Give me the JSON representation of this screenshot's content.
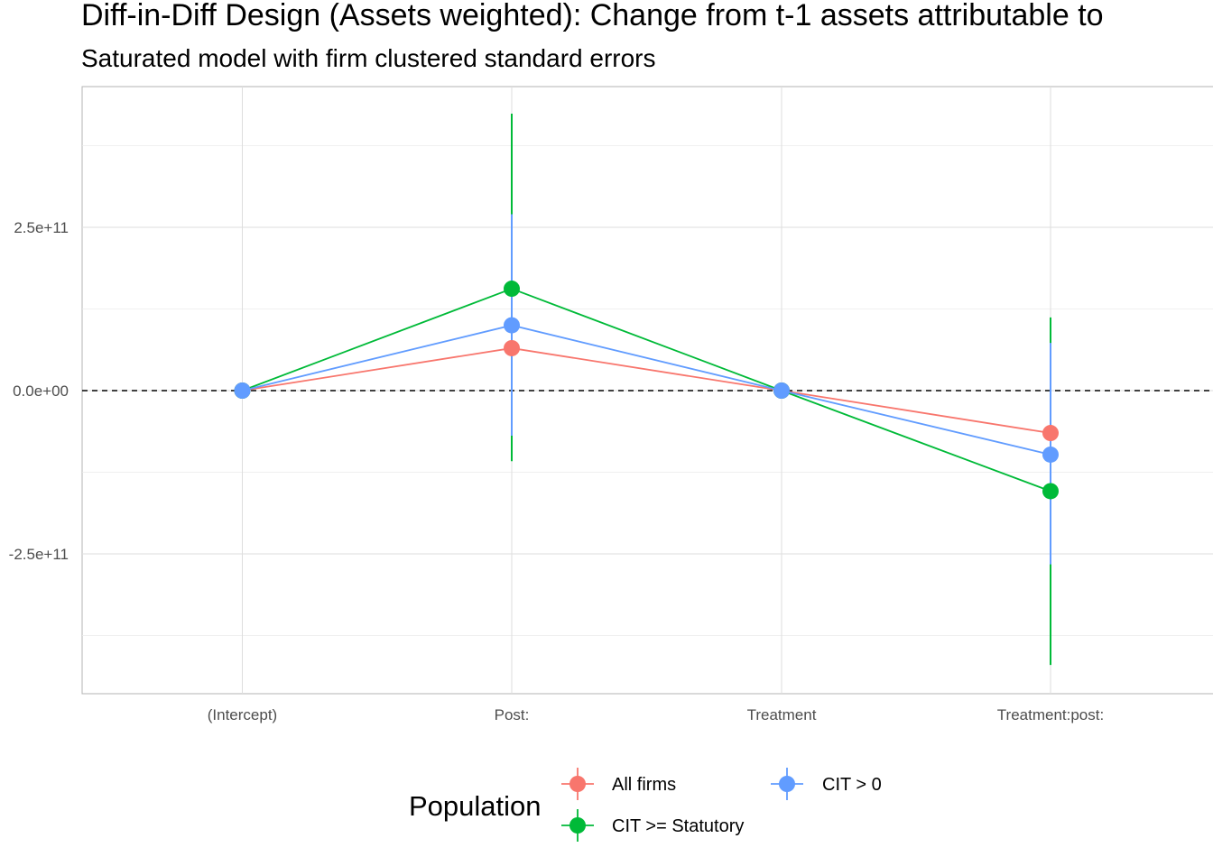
{
  "chart_data": {
    "type": "line",
    "title": "Diff-in-Diff Design (Assets weighted): Change from t-1 assets attributable to",
    "subtitle": "Saturated model with firm clustered standard errors",
    "categories": [
      "(Intercept)",
      "Post:",
      "Treatment",
      "Treatment:post:"
    ],
    "ylim": [
      -460000000000.0,
      465000000000.0
    ],
    "yticks": [
      {
        "value": -250000000000.0,
        "label": "-2.5e+11"
      },
      {
        "value": 0,
        "label": "0.0e+00"
      },
      {
        "value": 250000000000.0,
        "label": "2.5e+11"
      }
    ],
    "grid": true,
    "reference_line": {
      "value": 0,
      "style": "dashed"
    },
    "legend": {
      "title": "Population",
      "position": "bottom"
    },
    "series": [
      {
        "name": "All firms",
        "color": "#F8766D",
        "values": [
          0,
          65000000000.0,
          0,
          -65000000000.0
        ],
        "lower": [
          null,
          null,
          null,
          null
        ],
        "upper": [
          null,
          null,
          null,
          null
        ]
      },
      {
        "name": "CIT >= Statutory",
        "color": "#00BA38",
        "values": [
          0,
          156000000000.0,
          0,
          -154000000000.0
        ],
        "lower": [
          null,
          -108000000000.0,
          null,
          -420000000000.0
        ],
        "upper": [
          null,
          424000000000.0,
          null,
          112000000000.0
        ]
      },
      {
        "name": "CIT > 0",
        "color": "#619CFF",
        "values": [
          0,
          100000000000.0,
          0,
          -98000000000.0
        ],
        "lower": [
          null,
          -69000000000.0,
          null,
          -266000000000.0
        ],
        "upper": [
          null,
          270000000000.0,
          null,
          73000000000.0
        ]
      }
    ]
  }
}
